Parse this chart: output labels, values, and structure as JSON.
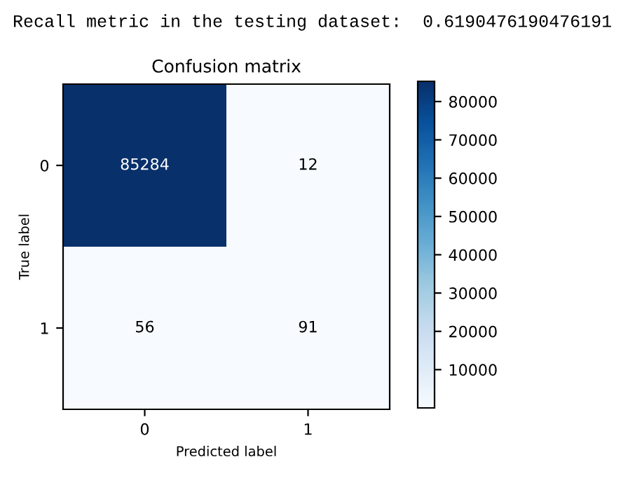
{
  "chart_data": {
    "type": "heatmap",
    "title": "Confusion matrix",
    "annotations": [
      "Recall metric in the testing dataset:  0.6190476190476191"
    ],
    "xlabel": "Predicted label",
    "ylabel": "True label",
    "categories": [
      "0",
      "1"
    ],
    "y_categories": [
      "0",
      "1"
    ],
    "cells": [
      [
        85284,
        12
      ],
      [
        56,
        91
      ]
    ],
    "data_labels": true,
    "clim": [
      12,
      85284
    ],
    "cticks": [
      10000,
      20000,
      30000,
      40000,
      50000,
      60000,
      70000,
      80000
    ]
  }
}
